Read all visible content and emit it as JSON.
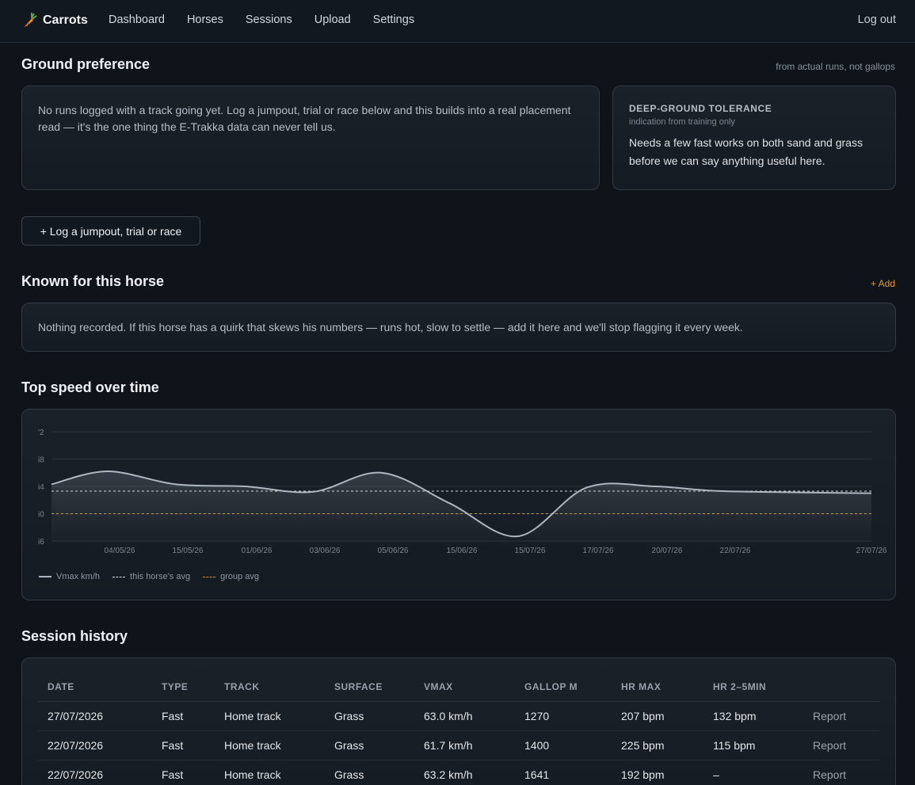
{
  "nav": {
    "brand": "Carrots",
    "items": [
      "Dashboard",
      "Horses",
      "Sessions",
      "Upload",
      "Settings"
    ],
    "logout": "Log out"
  },
  "ground": {
    "title": "Ground preference",
    "note": "from actual runs, not gallops",
    "empty_text": "No runs logged with a track going yet. Log a jumpout, trial or race below and this builds into a real placement read — it's the one thing the E-Trakka data can never tell us.",
    "deep": {
      "title": "DEEP-GROUND TOLERANCE",
      "sub": "indication from training only",
      "text": "Needs a few fast works on both sand and grass before we can say anything useful here."
    }
  },
  "log_button": "+ Log a jumpout, trial or race",
  "known": {
    "title": "Known for this horse",
    "add": "+ Add",
    "text": "Nothing recorded. If this horse has a quirk that skews his numbers — runs hot, slow to settle — add it here and we'll stop flagging it every week."
  },
  "chart": {
    "title": "Top speed over time",
    "legend": {
      "series": "Vmax km/h",
      "horse_avg": "this horse's avg",
      "group_avg": "group avg"
    }
  },
  "chart_data": {
    "type": "line",
    "title": "Top speed over time",
    "xlabel": "",
    "ylabel": "",
    "y_ticks": [
      "'2",
      "i8",
      "i4",
      "i0",
      "i6"
    ],
    "y_tick_values": [
      72,
      68,
      64,
      60,
      56
    ],
    "ylim": [
      56,
      72
    ],
    "grid": true,
    "legend_position": "bottom-left",
    "x": [
      "04/05/26",
      "15/05/26",
      "01/06/26",
      "03/06/26",
      "05/06/26",
      "15/06/26",
      "15/07/26",
      "17/07/26",
      "20/07/26",
      "22/07/26",
      "27/07/26"
    ],
    "series": [
      {
        "name": "Vmax km/h",
        "values": [
          66.2,
          64.3,
          64.0,
          63.2,
          66.0,
          61.5,
          56.7,
          63.8,
          64.0,
          63.3,
          63.0
        ],
        "color": "#aeb6c0"
      }
    ],
    "start_value": 64.3,
    "horse_avg": 63.3,
    "group_avg": 60.0,
    "colors": {
      "horse_avg": "#d0d4da",
      "group_avg": "#d2952f"
    }
  },
  "history": {
    "title": "Session history",
    "columns": [
      "DATE",
      "TYPE",
      "TRACK",
      "SURFACE",
      "VMAX",
      "GALLOP M",
      "HR MAX",
      "HR 2–5MIN",
      ""
    ],
    "rows": [
      [
        "27/07/2026",
        "Fast",
        "Home track",
        "Grass",
        "63.0 km/h",
        "1270",
        "207 bpm",
        "132 bpm",
        "Report"
      ],
      [
        "22/07/2026",
        "Fast",
        "Home track",
        "Grass",
        "61.7 km/h",
        "1400",
        "225 bpm",
        "115 bpm",
        "Report"
      ],
      [
        "22/07/2026",
        "Fast",
        "Home track",
        "Grass",
        "63.2 km/h",
        "1641",
        "192 bpm",
        "–",
        "Report"
      ]
    ]
  }
}
